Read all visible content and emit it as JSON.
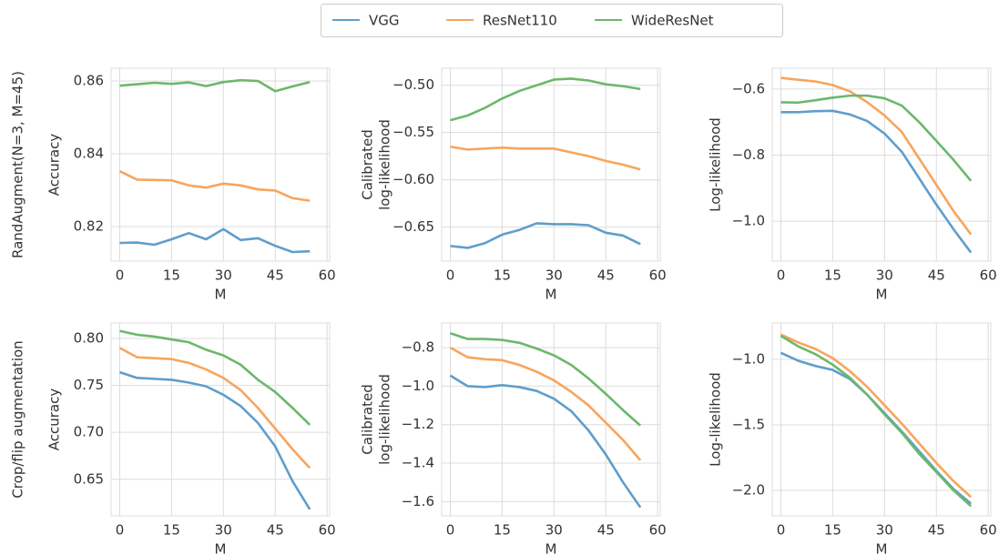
{
  "row_labels": [
    "RandAugment(N=3, M=45)",
    "Crop/flip augmentation"
  ],
  "chart_data": [
    {
      "type": "line",
      "xlabel": "M",
      "ylabel": [
        "Accuracy"
      ],
      "x": [
        0,
        5,
        10,
        15,
        20,
        25,
        30,
        35,
        40,
        45,
        50,
        55
      ],
      "xlim": [
        -2.5,
        60.75
      ],
      "xticks": [
        0,
        15,
        30,
        45,
        60
      ],
      "ylim": [
        0.8105,
        0.8635
      ],
      "yticks": [
        0.82,
        0.84,
        0.86
      ],
      "grid": true,
      "series": [
        {
          "name": "VGG",
          "color": "#5f9ecb",
          "values": [
            0.8155,
            0.8156,
            0.815,
            0.8165,
            0.8182,
            0.8165,
            0.8193,
            0.8163,
            0.8168,
            0.8147,
            0.813,
            0.8132
          ]
        },
        {
          "name": "ResNet110",
          "color": "#f7a55e",
          "values": [
            0.8352,
            0.8329,
            0.8328,
            0.8327,
            0.8313,
            0.8307,
            0.8318,
            0.8313,
            0.8302,
            0.8299,
            0.8278,
            0.8271
          ]
        },
        {
          "name": "WideResNet",
          "color": "#6bb86b",
          "values": [
            0.8587,
            0.8591,
            0.8595,
            0.8592,
            0.8596,
            0.8586,
            0.8597,
            0.8602,
            0.86,
            0.8572,
            0.8585,
            0.8597
          ]
        }
      ]
    },
    {
      "type": "line",
      "xlabel": "M",
      "ylabel": [
        "Calibrated",
        "log-likelihood"
      ],
      "x": [
        0,
        5,
        10,
        15,
        20,
        25,
        30,
        35,
        40,
        45,
        50,
        55
      ],
      "xlim": [
        -2.5,
        60.75
      ],
      "xticks": [
        0,
        15,
        30,
        45,
        60
      ],
      "ylim": [
        -0.686,
        -0.482
      ],
      "yticks": [
        {
          "value": -0.65,
          "label": "−0.65"
        },
        {
          "value": -0.6,
          "label": "−0.60"
        },
        {
          "value": -0.55,
          "label": "−0.55"
        },
        {
          "value": -0.5,
          "label": "−0.50"
        }
      ],
      "grid": true,
      "series": [
        {
          "color": "#5f9ecb",
          "values": [
            -0.67,
            -0.672,
            -0.667,
            -0.658,
            -0.653,
            -0.646,
            -0.647,
            -0.647,
            -0.648,
            -0.656,
            -0.659,
            -0.668
          ]
        },
        {
          "color": "#f7a55e",
          "values": [
            -0.565,
            -0.568,
            -0.567,
            -0.566,
            -0.567,
            -0.567,
            -0.567,
            -0.571,
            -0.575,
            -0.58,
            -0.584,
            -0.589
          ]
        },
        {
          "color": "#6bb86b",
          "values": [
            -0.537,
            -0.532,
            -0.524,
            -0.514,
            -0.506,
            -0.5,
            -0.494,
            -0.493,
            -0.495,
            -0.499,
            -0.501,
            -0.504
          ]
        }
      ]
    },
    {
      "type": "line",
      "xlabel": "M",
      "ylabel": [
        "Log-likelihood"
      ],
      "x": [
        0,
        5,
        10,
        15,
        20,
        25,
        30,
        35,
        40,
        45,
        50,
        55
      ],
      "xlim": [
        -2.5,
        60.75
      ],
      "xticks": [
        0,
        15,
        30,
        45,
        60
      ],
      "ylim": [
        -1.121,
        -0.537
      ],
      "yticks": [
        {
          "value": -1.0,
          "label": "−1.0"
        },
        {
          "value": -0.8,
          "label": "−0.8"
        },
        {
          "value": -0.6,
          "label": "−0.6"
        }
      ],
      "grid": true,
      "series": [
        {
          "color": "#5f9ecb",
          "values": [
            -0.67,
            -0.67,
            -0.667,
            -0.666,
            -0.677,
            -0.697,
            -0.735,
            -0.79,
            -0.87,
            -0.95,
            -1.025,
            -1.095
          ]
        },
        {
          "color": "#f7a55e",
          "values": [
            -0.566,
            -0.572,
            -0.577,
            -0.588,
            -0.607,
            -0.64,
            -0.68,
            -0.73,
            -0.81,
            -0.89,
            -0.97,
            -1.04
          ]
        },
        {
          "color": "#6bb86b",
          "values": [
            -0.64,
            -0.641,
            -0.634,
            -0.626,
            -0.62,
            -0.62,
            -0.628,
            -0.65,
            -0.7,
            -0.757,
            -0.815,
            -0.878
          ]
        }
      ]
    },
    {
      "type": "line",
      "xlabel": "M",
      "ylabel": [
        "Accuracy"
      ],
      "x": [
        0,
        5,
        10,
        15,
        20,
        25,
        30,
        35,
        40,
        45,
        50,
        55
      ],
      "xlim": [
        -2.5,
        60.75
      ],
      "xticks": [
        0,
        15,
        30,
        45,
        60
      ],
      "ylim": [
        0.611,
        0.8165
      ],
      "yticks": [
        0.65,
        {
          "value": 0.7,
          "label": "0.70"
        },
        0.75,
        {
          "value": 0.8,
          "label": "0.80"
        }
      ],
      "grid": true,
      "series": [
        {
          "color": "#5f9ecb",
          "values": [
            0.764,
            0.758,
            0.757,
            0.756,
            0.753,
            0.749,
            0.74,
            0.728,
            0.71,
            0.685,
            0.648,
            0.618
          ]
        },
        {
          "color": "#f7a55e",
          "values": [
            0.79,
            0.78,
            0.779,
            0.778,
            0.774,
            0.767,
            0.758,
            0.745,
            0.726,
            0.704,
            0.682,
            0.662
          ]
        },
        {
          "color": "#6bb86b",
          "values": [
            0.808,
            0.804,
            0.802,
            0.799,
            0.796,
            0.788,
            0.782,
            0.772,
            0.756,
            0.743,
            0.726,
            0.708
          ]
        }
      ]
    },
    {
      "type": "line",
      "xlabel": "M",
      "ylabel": [
        "Calibrated",
        "log-likelihood"
      ],
      "x": [
        0,
        5,
        10,
        15,
        20,
        25,
        30,
        35,
        40,
        45,
        50,
        55
      ],
      "xlim": [
        -2.5,
        60.75
      ],
      "xticks": [
        0,
        15,
        30,
        45,
        60
      ],
      "ylim": [
        -1.674,
        -0.672
      ],
      "yticks": [
        {
          "value": -1.6,
          "label": "−1.6"
        },
        {
          "value": -1.4,
          "label": "−1.4"
        },
        {
          "value": -1.2,
          "label": "−1.2"
        },
        {
          "value": -1.0,
          "label": "−1.0"
        },
        {
          "value": -0.8,
          "label": "−0.8"
        }
      ],
      "grid": true,
      "series": [
        {
          "color": "#5f9ecb",
          "values": [
            -0.945,
            -1.0,
            -1.005,
            -0.995,
            -1.005,
            -1.025,
            -1.065,
            -1.13,
            -1.23,
            -1.355,
            -1.5,
            -1.63
          ]
        },
        {
          "color": "#f7a55e",
          "values": [
            -0.8,
            -0.85,
            -0.86,
            -0.865,
            -0.89,
            -0.925,
            -0.97,
            -1.03,
            -1.1,
            -1.19,
            -1.28,
            -1.385
          ]
        },
        {
          "color": "#6bb86b",
          "values": [
            -0.725,
            -0.755,
            -0.755,
            -0.76,
            -0.775,
            -0.805,
            -0.84,
            -0.89,
            -0.96,
            -1.04,
            -1.125,
            -1.205
          ]
        }
      ]
    },
    {
      "type": "line",
      "xlabel": "M",
      "ylabel": [
        "Log-likelihood"
      ],
      "x": [
        0,
        5,
        10,
        15,
        20,
        25,
        30,
        35,
        40,
        45,
        50,
        55
      ],
      "xlim": [
        -2.5,
        60.75
      ],
      "xticks": [
        0,
        15,
        30,
        45,
        60
      ],
      "ylim": [
        -2.194,
        -0.722
      ],
      "yticks": [
        {
          "value": -2.0,
          "label": "−2.0"
        },
        {
          "value": -1.5,
          "label": "−1.5"
        },
        {
          "value": -1.0,
          "label": "−1.0"
        }
      ],
      "grid": true,
      "series": [
        {
          "color": "#5f9ecb",
          "values": [
            -0.95,
            -1.01,
            -1.05,
            -1.08,
            -1.15,
            -1.27,
            -1.41,
            -1.55,
            -1.7,
            -1.85,
            -1.99,
            -2.1
          ]
        },
        {
          "color": "#f7a55e",
          "values": [
            -0.81,
            -0.87,
            -0.92,
            -0.99,
            -1.09,
            -1.21,
            -1.35,
            -1.49,
            -1.64,
            -1.79,
            -1.93,
            -2.05
          ]
        },
        {
          "color": "#6bb86b",
          "values": [
            -0.82,
            -0.9,
            -0.96,
            -1.04,
            -1.14,
            -1.27,
            -1.42,
            -1.56,
            -1.72,
            -1.86,
            -2.0,
            -2.12
          ]
        }
      ]
    }
  ]
}
